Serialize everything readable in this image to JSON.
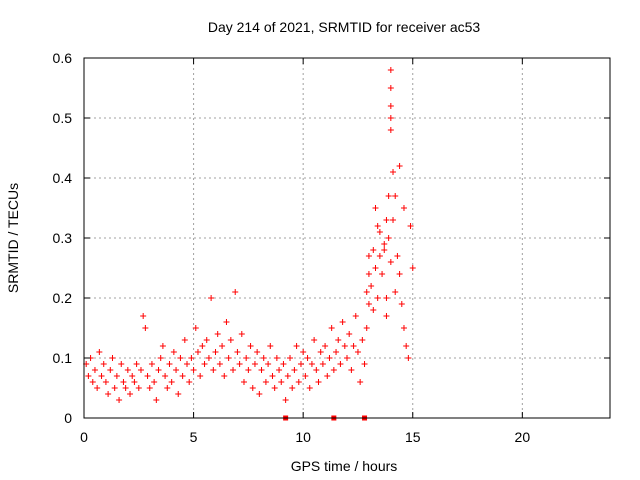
{
  "chart_data": {
    "type": "scatter",
    "title": "Day 214 of 2021, SRMTID for receiver ac53",
    "xlabel": "GPS time / hours",
    "ylabel": "SRMTID / TECUs",
    "xlim": [
      0,
      24
    ],
    "ylim": [
      0,
      0.6
    ],
    "xticks": [
      "0",
      "5",
      "10",
      "15",
      "20"
    ],
    "yticks": [
      "0",
      "0.1",
      "0.2",
      "0.3",
      "0.4",
      "0.5",
      "0.6"
    ],
    "grid": true,
    "marker": "+",
    "color": "#ff0000",
    "series": [
      {
        "name": "SRMTID",
        "points": [
          [
            0.1,
            0.09
          ],
          [
            0.2,
            0.07
          ],
          [
            0.3,
            0.1
          ],
          [
            0.4,
            0.06
          ],
          [
            0.5,
            0.08
          ],
          [
            0.6,
            0.05
          ],
          [
            0.7,
            0.11
          ],
          [
            0.8,
            0.07
          ],
          [
            0.9,
            0.09
          ],
          [
            1.0,
            0.06
          ],
          [
            1.1,
            0.04
          ],
          [
            1.2,
            0.08
          ],
          [
            1.3,
            0.1
          ],
          [
            1.4,
            0.05
          ],
          [
            1.5,
            0.07
          ],
          [
            1.6,
            0.03
          ],
          [
            1.7,
            0.09
          ],
          [
            1.8,
            0.06
          ],
          [
            1.9,
            0.05
          ],
          [
            2.0,
            0.08
          ],
          [
            2.1,
            0.04
          ],
          [
            2.2,
            0.07
          ],
          [
            2.3,
            0.06
          ],
          [
            2.4,
            0.09
          ],
          [
            2.5,
            0.05
          ],
          [
            2.6,
            0.08
          ],
          [
            2.7,
            0.17
          ],
          [
            2.8,
            0.15
          ],
          [
            2.9,
            0.07
          ],
          [
            3.0,
            0.05
          ],
          [
            3.1,
            0.09
          ],
          [
            3.2,
            0.06
          ],
          [
            3.3,
            0.03
          ],
          [
            3.4,
            0.08
          ],
          [
            3.5,
            0.1
          ],
          [
            3.6,
            0.12
          ],
          [
            3.7,
            0.07
          ],
          [
            3.8,
            0.05
          ],
          [
            3.9,
            0.09
          ],
          [
            4.0,
            0.06
          ],
          [
            4.1,
            0.11
          ],
          [
            4.2,
            0.08
          ],
          [
            4.3,
            0.04
          ],
          [
            4.4,
            0.1
          ],
          [
            4.5,
            0.07
          ],
          [
            4.6,
            0.13
          ],
          [
            4.7,
            0.09
          ],
          [
            4.8,
            0.06
          ],
          [
            4.9,
            0.1
          ],
          [
            5.0,
            0.08
          ],
          [
            5.1,
            0.15
          ],
          [
            5.2,
            0.11
          ],
          [
            5.3,
            0.07
          ],
          [
            5.4,
            0.12
          ],
          [
            5.5,
            0.09
          ],
          [
            5.6,
            0.13
          ],
          [
            5.7,
            0.1
          ],
          [
            5.8,
            0.2
          ],
          [
            5.9,
            0.08
          ],
          [
            6.0,
            0.11
          ],
          [
            6.1,
            0.14
          ],
          [
            6.2,
            0.09
          ],
          [
            6.3,
            0.12
          ],
          [
            6.4,
            0.07
          ],
          [
            6.5,
            0.16
          ],
          [
            6.6,
            0.1
          ],
          [
            6.7,
            0.13
          ],
          [
            6.8,
            0.08
          ],
          [
            6.9,
            0.21
          ],
          [
            7.0,
            0.11
          ],
          [
            7.1,
            0.09
          ],
          [
            7.2,
            0.14
          ],
          [
            7.3,
            0.06
          ],
          [
            7.4,
            0.1
          ],
          [
            7.5,
            0.08
          ],
          [
            7.6,
            0.12
          ],
          [
            7.7,
            0.05
          ],
          [
            7.8,
            0.09
          ],
          [
            7.9,
            0.11
          ],
          [
            8.0,
            0.04
          ],
          [
            8.1,
            0.08
          ],
          [
            8.2,
            0.1
          ],
          [
            8.3,
            0.06
          ],
          [
            8.4,
            0.09
          ],
          [
            8.5,
            0.12
          ],
          [
            8.6,
            0.07
          ],
          [
            8.7,
            0.05
          ],
          [
            8.8,
            0.1
          ],
          [
            8.9,
            0.08
          ],
          [
            9.0,
            0.06
          ],
          [
            9.1,
            0.09
          ],
          [
            9.2,
            0.03
          ],
          [
            9.3,
            0.07
          ],
          [
            9.4,
            0.1
          ],
          [
            9.5,
            0.05
          ],
          [
            9.6,
            0.08
          ],
          [
            9.7,
            0.12
          ],
          [
            9.8,
            0.06
          ],
          [
            9.9,
            0.09
          ],
          [
            10.0,
            0.11
          ],
          [
            10.1,
            0.07
          ],
          [
            10.2,
            0.1
          ],
          [
            10.3,
            0.05
          ],
          [
            10.4,
            0.09
          ],
          [
            10.5,
            0.13
          ],
          [
            10.6,
            0.08
          ],
          [
            10.7,
            0.06
          ],
          [
            10.8,
            0.11
          ],
          [
            10.9,
            0.09
          ],
          [
            11.0,
            0.12
          ],
          [
            11.1,
            0.07
          ],
          [
            11.2,
            0.1
          ],
          [
            11.3,
            0.15
          ],
          [
            11.4,
            0.08
          ],
          [
            11.5,
            0.11
          ],
          [
            11.6,
            0.13
          ],
          [
            11.7,
            0.09
          ],
          [
            11.8,
            0.16
          ],
          [
            11.9,
            0.12
          ],
          [
            12.0,
            0.1
          ],
          [
            12.1,
            0.14
          ],
          [
            12.2,
            0.08
          ],
          [
            12.3,
            0.12
          ],
          [
            12.4,
            0.17
          ],
          [
            12.5,
            0.11
          ],
          [
            12.6,
            0.06
          ],
          [
            12.7,
            0.13
          ],
          [
            12.8,
            0.09
          ],
          [
            12.9,
            0.15
          ],
          [
            13.0,
            0.19
          ],
          [
            13.1,
            0.22
          ],
          [
            13.2,
            0.18
          ],
          [
            13.3,
            0.25
          ],
          [
            13.4,
            0.2
          ],
          [
            13.5,
            0.31
          ],
          [
            13.6,
            0.24
          ],
          [
            13.7,
            0.28
          ],
          [
            13.8,
            0.17
          ],
          [
            13.9,
            0.3
          ],
          [
            14.0,
            0.26
          ],
          [
            14.1,
            0.33
          ],
          [
            14.2,
            0.21
          ],
          [
            14.3,
            0.27
          ],
          [
            14.4,
            0.24
          ],
          [
            14.5,
            0.19
          ],
          [
            14.6,
            0.15
          ],
          [
            14.7,
            0.12
          ],
          [
            14.8,
            0.1
          ],
          [
            14.9,
            0.32
          ],
          [
            15.0,
            0.25
          ],
          [
            12.9,
            0.21
          ],
          [
            13.0,
            0.24
          ],
          [
            13.0,
            0.27
          ],
          [
            13.2,
            0.28
          ],
          [
            13.3,
            0.35
          ],
          [
            13.4,
            0.32
          ],
          [
            13.5,
            0.27
          ],
          [
            13.7,
            0.29
          ],
          [
            13.8,
            0.33
          ],
          [
            13.8,
            0.2
          ],
          [
            13.9,
            0.37
          ],
          [
            14.0,
            0.58
          ],
          [
            14.0,
            0.55
          ],
          [
            14.0,
            0.52
          ],
          [
            14.0,
            0.5
          ],
          [
            14.0,
            0.48
          ],
          [
            14.1,
            0.41
          ],
          [
            14.2,
            0.37
          ],
          [
            14.4,
            0.42
          ],
          [
            14.6,
            0.35
          ]
        ]
      }
    ],
    "zero_markers": [
      9.2,
      11.4,
      12.8
    ]
  }
}
